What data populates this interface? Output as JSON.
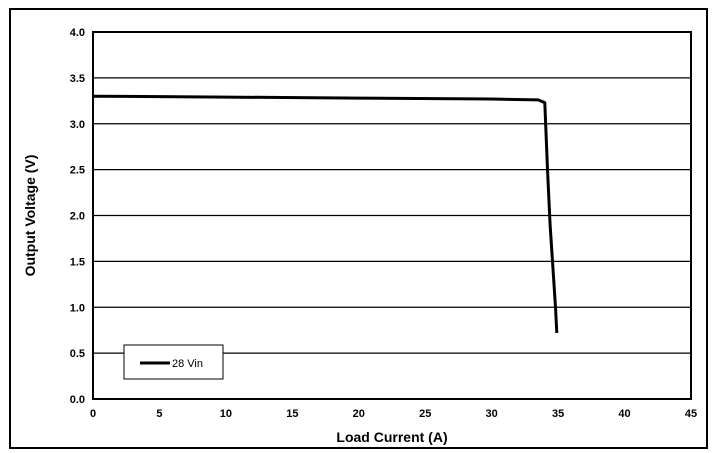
{
  "chart_data": {
    "type": "line",
    "title": "",
    "xlabel": "Load Current (A)",
    "ylabel": "Output Voltage (V)",
    "xlim": [
      0,
      45
    ],
    "ylim": [
      0,
      4.0
    ],
    "x_ticks": [
      "0",
      "5",
      "10",
      "15",
      "20",
      "25",
      "30",
      "35",
      "40",
      "45"
    ],
    "y_ticks": [
      "0.0",
      "0.5",
      "1.0",
      "1.5",
      "2.0",
      "2.5",
      "3.0",
      "3.5",
      "4.0"
    ],
    "grid": "horizontal",
    "legend_position": "bottom-left",
    "series": [
      {
        "name": "28 Vin",
        "color": "#000000",
        "points": [
          [
            0,
            3.3
          ],
          [
            10,
            3.29
          ],
          [
            20,
            3.28
          ],
          [
            30,
            3.27
          ],
          [
            33.5,
            3.26
          ],
          [
            34.0,
            3.23
          ],
          [
            34.2,
            2.5
          ],
          [
            34.4,
            1.9
          ],
          [
            34.8,
            1.0
          ],
          [
            34.9,
            0.72
          ]
        ]
      }
    ]
  },
  "colors": {
    "background": "#ffffff",
    "axis": "#000000",
    "grid": "#000000",
    "line": "#000000"
  }
}
